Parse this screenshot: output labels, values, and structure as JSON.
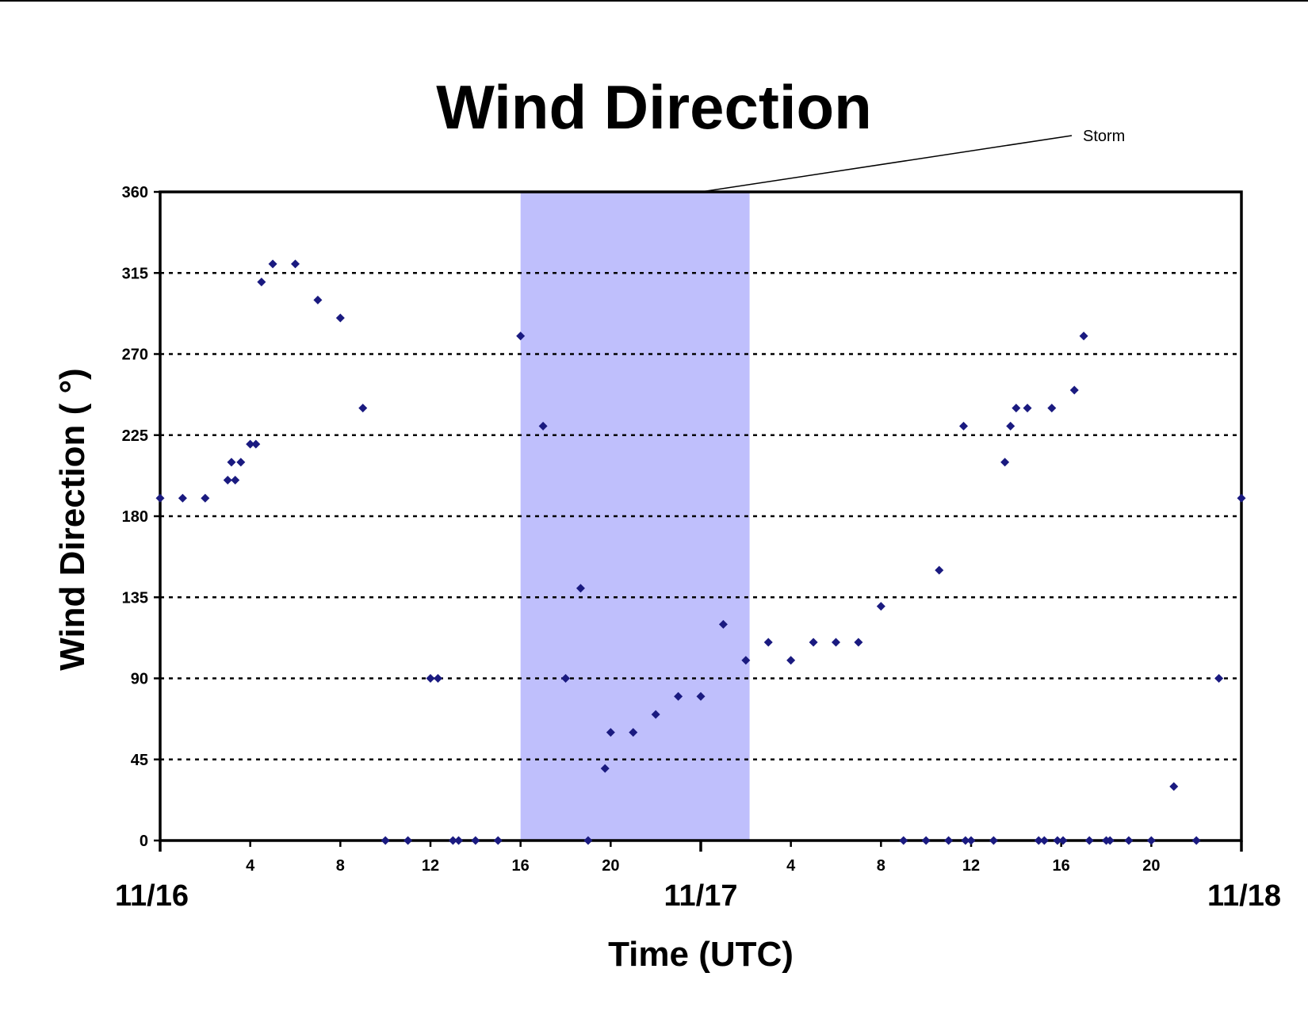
{
  "chart_data": {
    "type": "scatter",
    "title": "Wind Direction",
    "xlabel": "Time (UTC)",
    "ylabel": "Wind Direction ( °)",
    "ylim": [
      0,
      360
    ],
    "xlim": [
      "11/16 00:00",
      "11/18 00:00"
    ],
    "grid": "horizontal-dotted",
    "legend": "none",
    "yticks": [
      "0",
      "45",
      "90",
      "135",
      "180",
      "225",
      "270",
      "315",
      "360"
    ],
    "xticks": [
      "4",
      "8",
      "12",
      "16",
      "20",
      "4",
      "8",
      "12",
      "16",
      "20"
    ],
    "date_labels": [
      "11/16",
      "11/17",
      "11/18"
    ],
    "marker_color": "#1a1a80",
    "storm": {
      "label": "Storm",
      "start": "11/16 16:00",
      "end": "11/17 02:10",
      "color": "#bfbffc"
    },
    "points": [
      [
        "11/16 00:00",
        190
      ],
      [
        "11/16 01:00",
        190
      ],
      [
        "11/16 02:00",
        190
      ],
      [
        "11/16 03:00",
        200
      ],
      [
        "11/16 03:10",
        210
      ],
      [
        "11/16 03:20",
        200
      ],
      [
        "11/16 03:35",
        210
      ],
      [
        "11/16 04:00",
        220
      ],
      [
        "11/16 04:15",
        220
      ],
      [
        "11/16 04:30",
        310
      ],
      [
        "11/16 05:00",
        320
      ],
      [
        "11/16 06:00",
        320
      ],
      [
        "11/16 07:00",
        300
      ],
      [
        "11/16 08:00",
        290
      ],
      [
        "11/16 09:00",
        240
      ],
      [
        "11/16 10:00",
        0
      ],
      [
        "11/16 11:00",
        0
      ],
      [
        "11/16 12:00",
        90
      ],
      [
        "11/16 12:20",
        90
      ],
      [
        "11/16 13:00",
        0
      ],
      [
        "11/16 13:15",
        0
      ],
      [
        "11/16 14:00",
        0
      ],
      [
        "11/16 15:00",
        0
      ],
      [
        "11/16 16:00",
        280
      ],
      [
        "11/16 17:00",
        230
      ],
      [
        "11/16 18:00",
        90
      ],
      [
        "11/16 18:40",
        140
      ],
      [
        "11/16 19:00",
        0
      ],
      [
        "11/16 19:45",
        40
      ],
      [
        "11/16 20:00",
        60
      ],
      [
        "11/16 21:00",
        60
      ],
      [
        "11/16 22:00",
        70
      ],
      [
        "11/16 23:00",
        80
      ],
      [
        "11/17 00:00",
        80
      ],
      [
        "11/17 01:00",
        120
      ],
      [
        "11/17 02:00",
        100
      ],
      [
        "11/17 03:00",
        110
      ],
      [
        "11/17 04:00",
        100
      ],
      [
        "11/17 05:00",
        110
      ],
      [
        "11/17 06:00",
        110
      ],
      [
        "11/17 07:00",
        110
      ],
      [
        "11/17 08:00",
        130
      ],
      [
        "11/17 09:00",
        0
      ],
      [
        "11/17 10:00",
        0
      ],
      [
        "11/17 10:35",
        150
      ],
      [
        "11/17 11:00",
        0
      ],
      [
        "11/17 11:40",
        230
      ],
      [
        "11/17 11:45",
        0
      ],
      [
        "11/17 12:00",
        0
      ],
      [
        "11/17 13:00",
        0
      ],
      [
        "11/17 13:30",
        210
      ],
      [
        "11/17 13:45",
        230
      ],
      [
        "11/17 14:00",
        240
      ],
      [
        "11/17 14:30",
        240
      ],
      [
        "11/17 15:00",
        0
      ],
      [
        "11/17 15:15",
        0
      ],
      [
        "11/17 15:35",
        240
      ],
      [
        "11/17 15:50",
        0
      ],
      [
        "11/17 16:05",
        0
      ],
      [
        "11/17 16:35",
        250
      ],
      [
        "11/17 17:00",
        280
      ],
      [
        "11/17 17:15",
        0
      ],
      [
        "11/17 18:00",
        0
      ],
      [
        "11/17 18:10",
        0
      ],
      [
        "11/17 19:00",
        0
      ],
      [
        "11/17 20:00",
        0
      ],
      [
        "11/17 21:00",
        30
      ],
      [
        "11/17 22:00",
        0
      ],
      [
        "11/17 23:00",
        90
      ],
      [
        "11/18 00:00",
        190
      ]
    ]
  }
}
